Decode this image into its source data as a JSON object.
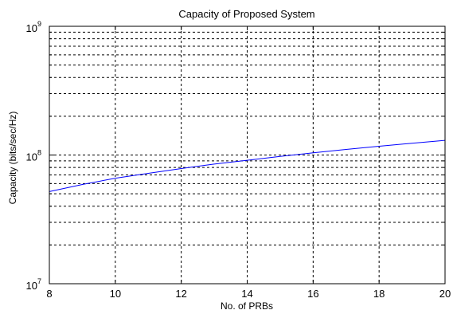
{
  "chart_data": {
    "type": "line",
    "title": "Capacity of Proposed System",
    "xlabel": "No. of PRBs",
    "ylabel": "Capacity (bits/sec/Hz)",
    "xlim": [
      8,
      20
    ],
    "ylim": [
      10000000,
      1000000000
    ],
    "yscale": "log",
    "grid": true,
    "grid_style": "dotted",
    "x_ticks": [
      8,
      10,
      12,
      14,
      16,
      18,
      20
    ],
    "x_tick_labels": [
      "8",
      "10",
      "12",
      "14",
      "16",
      "18",
      "20"
    ],
    "y_ticks": [
      10000000,
      100000000,
      1000000000
    ],
    "y_tick_labels": [
      {
        "base": "10",
        "exp": "7"
      },
      {
        "base": "10",
        "exp": "8"
      },
      {
        "base": "10",
        "exp": "9"
      }
    ],
    "series": [
      {
        "color": "#0000ff",
        "x": [
          8,
          9,
          10,
          11,
          12,
          13,
          14,
          15,
          16,
          17,
          18,
          19,
          20
        ],
        "y": [
          52000000,
          59000000,
          66000000,
          72000000,
          78500000,
          85000000,
          91000000,
          97500000,
          104000000,
          110500000,
          117000000,
          123500000,
          130000000
        ]
      }
    ]
  }
}
